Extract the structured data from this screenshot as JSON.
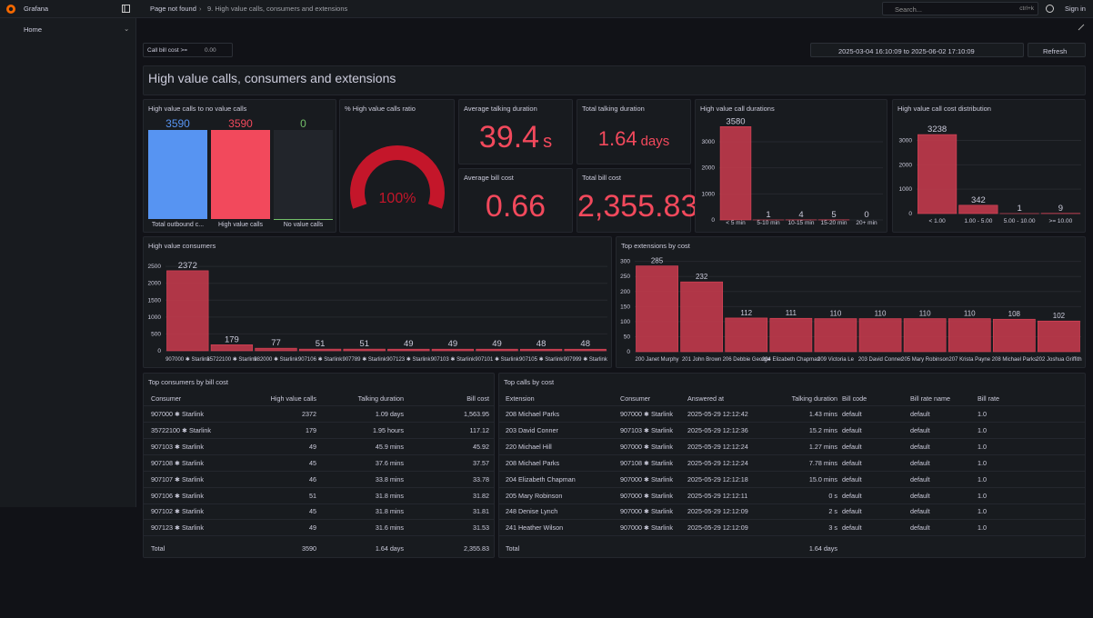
{
  "topbar": {
    "app": "Grafana",
    "breadcrumb": [
      "Page not found",
      "9. High value calls, consumers and extensions"
    ],
    "search": "Search...",
    "shortcut": "ctrl+k",
    "sign_in": "Sign in"
  },
  "sidebar": {
    "home": "Home"
  },
  "toolbar": {
    "variable_label": "Call bill cost >=",
    "variable_value": "0.00",
    "time_range": "2025-03-04 16:10:09 to 2025-06-02 17:10:09",
    "refresh": "Refresh"
  },
  "dashboard_title": "High value calls, consumers and extensions",
  "panels": {
    "ratio_bars": {
      "type": "bar_gauge",
      "title": "High value calls to no value calls",
      "categories": [
        "Total outbound c...",
        "High value calls",
        "No value calls"
      ],
      "values": [
        3590,
        3590,
        0
      ],
      "colors": [
        "#5794f2",
        "#f2495c",
        "#73bf69"
      ]
    },
    "ratio_gauge": {
      "type": "gauge",
      "title": "% High value calls ratio",
      "value": 100,
      "value_label": "100%",
      "color": "#c4162a"
    },
    "avg_talking": {
      "type": "stat",
      "title": "Average talking duration",
      "value": 39.4,
      "unit": "s"
    },
    "total_talking": {
      "type": "stat",
      "title": "Total talking duration",
      "value": 1.64,
      "unit": "days"
    },
    "avg_bill": {
      "type": "stat",
      "title": "Average bill cost",
      "value": 0.66
    },
    "total_bill": {
      "type": "stat",
      "title": "Total bill cost",
      "value": 2355.83,
      "value_label": "2,355.83"
    },
    "durations": {
      "type": "bar",
      "title": "High value call durations",
      "categories": [
        "< 5 min",
        "5-10 min",
        "10-15 min",
        "15-20 min",
        "20+ min"
      ],
      "values": [
        3580,
        1,
        4,
        5,
        0
      ],
      "ylim": [
        0,
        3800
      ],
      "yticks": [
        0,
        1000,
        2000,
        3000
      ],
      "color": "#c13a4b"
    },
    "cost_distribution": {
      "type": "bar",
      "title": "High value call cost distribution",
      "categories": [
        "< 1.00",
        "1.00 - 5.00",
        "5.00 - 10.00",
        ">= 10.00"
      ],
      "values": [
        3238,
        342,
        1,
        9
      ],
      "ylim": [
        0,
        3800
      ],
      "yticks": [
        0,
        1000,
        2000,
        3000
      ],
      "color": "#c13a4b"
    },
    "consumers": {
      "type": "bar",
      "title": "High value consumers",
      "categories": [
        "907000 ✱ Starlink",
        "35722100 ✱ Starlink",
        "982000 ✱ Starlink",
        "907106 ✱ Starlink",
        "907789 ✱ Starlink",
        "907123 ✱ Starlink",
        "907103 ✱ Starlink",
        "907101 ✱ Starlink",
        "907105 ✱ Starlink",
        "907999 ✱ Starlink"
      ],
      "values": [
        2372,
        179,
        77,
        51,
        51,
        49,
        49,
        49,
        48,
        48
      ],
      "ylim": [
        0,
        2800
      ],
      "yticks": [
        0,
        500,
        1000,
        1500,
        2000,
        2500
      ],
      "color": "#c13a4b"
    },
    "extensions": {
      "type": "bar",
      "title": "Top extensions by cost",
      "categories": [
        "200 Janet Murphy",
        "201 John Brown",
        "206 Debbie George",
        "204 Elizabeth Chapman",
        "209 Victoria Le",
        "203 David Conner",
        "205 Mary Robinson",
        "207 Krista Payne",
        "208 Michael Parks",
        "202 Joshua Griffith"
      ],
      "values": [
        285,
        232,
        112,
        111,
        110,
        110,
        110,
        110,
        108,
        102
      ],
      "ylim": [
        0,
        320
      ],
      "yticks": [
        0,
        50,
        100,
        150,
        200,
        250,
        300
      ],
      "color": "#c13a4b"
    },
    "consumer_table": {
      "type": "table",
      "title": "Top consumers by bill cost",
      "columns": [
        "Consumer",
        "High value calls",
        "Talking duration",
        "Bill cost"
      ],
      "rows": [
        [
          "907000 ✱ Starlink",
          "2372",
          "1.09 days",
          "1,563.95"
        ],
        [
          "35722100 ✱ Starlink",
          "179",
          "1.95 hours",
          "117.12"
        ],
        [
          "907103 ✱ Starlink",
          "49",
          "45.9 mins",
          "45.92"
        ],
        [
          "907108 ✱ Starlink",
          "45",
          "37.6 mins",
          "37.57"
        ],
        [
          "907107 ✱ Starlink",
          "46",
          "33.8 mins",
          "33.78"
        ],
        [
          "907106 ✱ Starlink",
          "51",
          "31.8 mins",
          "31.82"
        ],
        [
          "907102 ✱ Starlink",
          "45",
          "31.8 mins",
          "31.81"
        ],
        [
          "907123 ✱ Starlink",
          "49",
          "31.6 mins",
          "31.53"
        ]
      ],
      "footer": [
        "Total",
        "3590",
        "1.64 days",
        "2,355.83"
      ]
    },
    "calls_table": {
      "type": "table",
      "title": "Top calls by cost",
      "columns": [
        "Extension",
        "Consumer",
        "Answered at",
        "Talking duration",
        "Bill code",
        "Bill rate name",
        "Bill rate"
      ],
      "rows": [
        [
          "208 Michael Parks",
          "907000 ✱ Starlink",
          "2025-05-29 12:12:42",
          "1.43 mins",
          "default",
          "default",
          "1.0"
        ],
        [
          "203 David Conner",
          "907103 ✱ Starlink",
          "2025-05-29 12:12:36",
          "15.2 mins",
          "default",
          "default",
          "1.0"
        ],
        [
          "220 Michael Hill",
          "907000 ✱ Starlink",
          "2025-05-29 12:12:24",
          "1.27 mins",
          "default",
          "default",
          "1.0"
        ],
        [
          "208 Michael Parks",
          "907108 ✱ Starlink",
          "2025-05-29 12:12:24",
          "7.78 mins",
          "default",
          "default",
          "1.0"
        ],
        [
          "204 Elizabeth Chapman",
          "907000 ✱ Starlink",
          "2025-05-29 12:12:18",
          "15.0 mins",
          "default",
          "default",
          "1.0"
        ],
        [
          "205 Mary Robinson",
          "907000 ✱ Starlink",
          "2025-05-29 12:12:11",
          "0 s",
          "default",
          "default",
          "1.0"
        ],
        [
          "248 Denise Lynch",
          "907000 ✱ Starlink",
          "2025-05-29 12:12:09",
          "2 s",
          "default",
          "default",
          "1.0"
        ],
        [
          "241 Heather Wilson",
          "907000 ✱ Starlink",
          "2025-05-29 12:12:09",
          "3 s",
          "default",
          "default",
          "1.0"
        ]
      ],
      "footer_label": "Total",
      "footer_talking": "1.64 days"
    }
  }
}
